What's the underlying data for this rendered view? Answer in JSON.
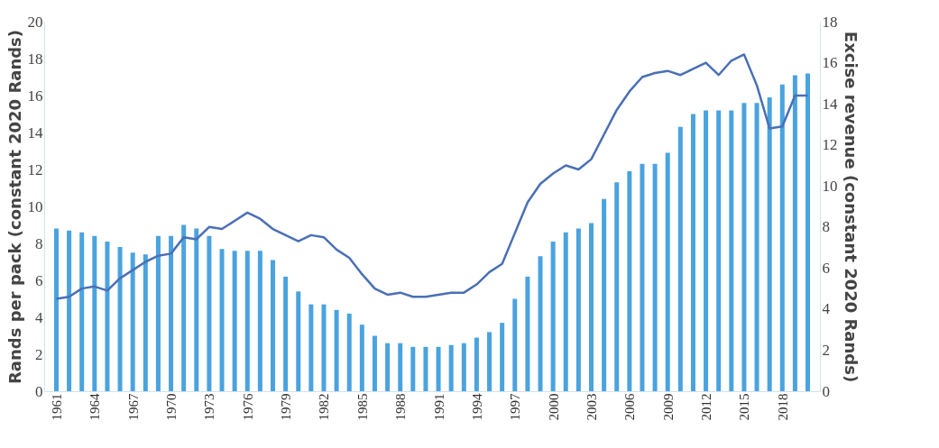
{
  "chart_data": {
    "type": "bar",
    "ylabel": "Rands per pack (constant 2020 Rands)",
    "y2label": "Excise revenue (constant 2020 Rands)",
    "categories": [
      "1961",
      null,
      null,
      "1964",
      null,
      null,
      "1967",
      null,
      null,
      "1970",
      null,
      null,
      "1973",
      null,
      null,
      "1976",
      null,
      null,
      "1979",
      null,
      null,
      "1982",
      null,
      null,
      "1985",
      null,
      null,
      "1988",
      null,
      null,
      "1991",
      null,
      null,
      "1994",
      null,
      null,
      "1997",
      null,
      null,
      "2000",
      null,
      null,
      "2003",
      null,
      null,
      "2006",
      null,
      null,
      "2009",
      null,
      null,
      "2012",
      null,
      null,
      "2015",
      null,
      null,
      "2018",
      null,
      null
    ],
    "series": [
      {
        "color": "#4aa3df",
        "values": [
          8.8,
          8.7,
          8.6,
          8.4,
          8.1,
          7.8,
          7.5,
          7.4,
          8.4,
          8.4,
          9.0,
          8.8,
          8.4,
          7.7,
          7.6,
          7.6,
          7.6,
          7.1,
          6.2,
          5.4,
          4.7,
          4.7,
          4.4,
          4.2,
          3.6,
          3.0,
          2.6,
          2.6,
          2.4,
          2.4,
          2.4,
          2.5,
          2.6,
          2.9,
          3.2,
          3.7,
          5.0,
          6.2,
          7.3,
          8.1,
          8.6,
          8.8,
          9.1,
          10.4,
          11.3,
          11.9,
          12.3,
          12.3,
          12.9,
          14.3,
          15.0,
          15.2,
          15.2,
          15.2,
          15.6,
          15.6,
          15.9,
          16.6,
          17.1,
          17.2
        ]
      },
      {
        "type": "line",
        "axis": "y2",
        "color": "#4a6fb5",
        "values": [
          4.5,
          4.6,
          5.0,
          5.1,
          4.9,
          5.5,
          5.9,
          6.3,
          6.6,
          6.7,
          7.5,
          7.4,
          8.0,
          7.9,
          8.3,
          8.7,
          8.4,
          7.9,
          7.6,
          7.3,
          7.6,
          7.5,
          6.9,
          6.5,
          5.7,
          5.0,
          4.7,
          4.8,
          4.6,
          4.6,
          4.7,
          4.8,
          4.8,
          5.2,
          5.8,
          6.2,
          7.7,
          9.2,
          10.1,
          10.6,
          11.0,
          10.8,
          11.3,
          12.5,
          13.7,
          14.6,
          15.3,
          15.5,
          15.6,
          15.4,
          15.7,
          16.0,
          15.4,
          16.1,
          16.4,
          14.9,
          12.8,
          12.9,
          14.4,
          14.4
        ]
      }
    ],
    "ylim": [
      0,
      20
    ],
    "yticks": [
      0,
      2,
      4,
      6,
      8,
      10,
      12,
      14,
      16,
      18,
      20
    ],
    "y2lim": [
      0,
      18
    ],
    "y2ticks": [
      0,
      2,
      4,
      6,
      8,
      10,
      12,
      14,
      16,
      18
    ],
    "grid": false
  }
}
